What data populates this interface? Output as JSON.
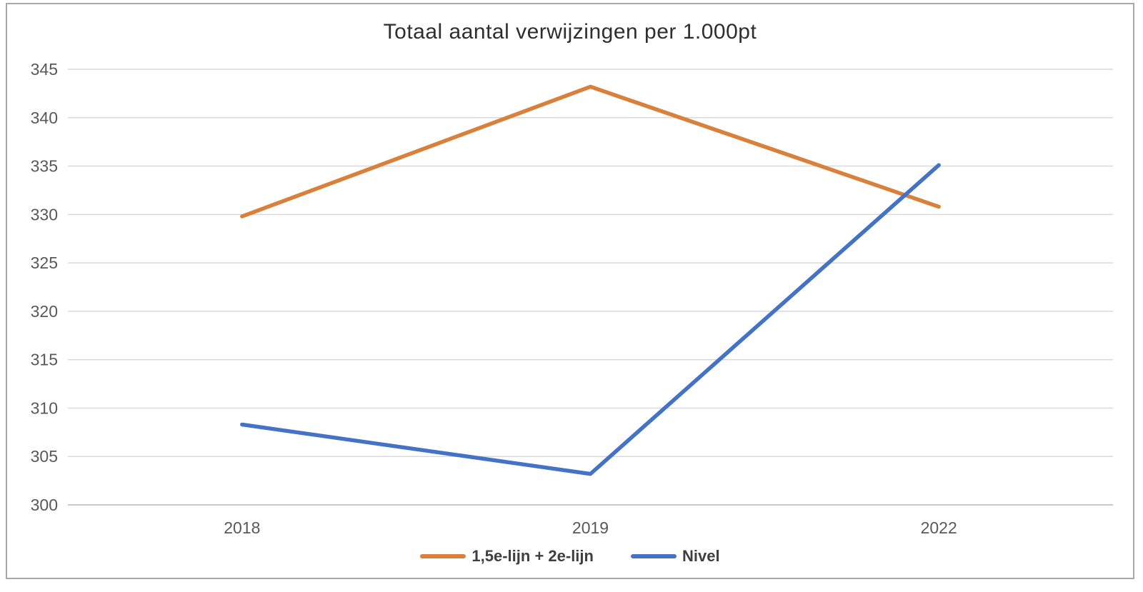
{
  "chart_data": {
    "type": "line",
    "title": "Totaal aantal verwijzingen per 1.000pt",
    "categories": [
      "2018",
      "2019",
      "2022"
    ],
    "series": [
      {
        "name": "1,5e-lijn + 2e-lijn",
        "color": "#D9803C",
        "values": [
          329.8,
          343.2,
          330.8
        ]
      },
      {
        "name": "Nivel",
        "color": "#4472C4",
        "values": [
          308.3,
          303.2,
          335.1
        ]
      }
    ],
    "xlabel": "",
    "ylabel": "",
    "ylim": [
      300,
      345
    ],
    "ytick_step": 5,
    "grid": true,
    "legend_position": "bottom"
  },
  "colors": {
    "gridline": "#D9D9D9",
    "axis_line": "#C9C9C9",
    "tick_label": "#595959",
    "title_text": "#2E2E2E",
    "legend_text": "#3F3F3F",
    "frame_border": "#A9A9A9",
    "background": "#FFFFFF"
  }
}
